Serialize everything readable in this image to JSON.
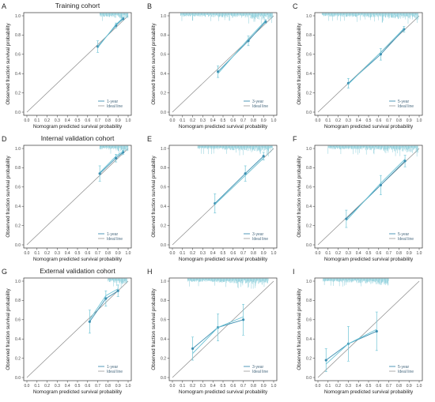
{
  "colors": {
    "series": "#3d8fb1",
    "series_light": "#6cc3d5",
    "rug": "#7ec8d6",
    "ideal": "#8a8a8a",
    "axis": "#333333"
  },
  "chart_data": [
    {
      "letter": "A",
      "title": "Training cohort",
      "type": "line",
      "xlabel": "Nomogram predicted survival probability",
      "ylabel": "Observed fraction survival probability",
      "xlim": [
        0,
        1
      ],
      "ylim": [
        0,
        1
      ],
      "xticks": [
        "0.0",
        "0.1",
        "0.2",
        "0.3",
        "0.4",
        "0.5",
        "0.6",
        "0.7",
        "0.8",
        "0.9",
        "1.0"
      ],
      "yticks": [
        "0.0",
        "0.2",
        "0.4",
        "0.6",
        "0.8",
        "1.0"
      ],
      "legend": [
        "1-year",
        "Ideal line"
      ],
      "rug": {
        "from": 0.72,
        "to": 1.0
      },
      "series": [
        {
          "x": [
            0.7,
            0.88,
            0.95
          ],
          "y": [
            0.68,
            0.9,
            0.97
          ],
          "err": [
            0.06,
            0.025,
            0.015
          ]
        },
        {
          "x": [
            0.7,
            0.88,
            0.95
          ],
          "y": [
            0.67,
            0.91,
            0.98
          ],
          "err": [
            0,
            0,
            0
          ]
        }
      ]
    },
    {
      "letter": "D",
      "title": "Internal validation cohort",
      "type": "line",
      "xlabel": "Nomogram predicted survival probability",
      "ylabel": "Observed fraction survival probability",
      "xlim": [
        0,
        1
      ],
      "ylim": [
        0,
        1
      ],
      "xticks": [
        "0.0",
        "0.1",
        "0.2",
        "0.3",
        "0.4",
        "0.5",
        "0.6",
        "0.7",
        "0.8",
        "0.9",
        "1.0"
      ],
      "yticks": [
        "0.0",
        "0.2",
        "0.4",
        "0.6",
        "0.8",
        "1.0"
      ],
      "legend": [
        "1-year",
        "Ideal line"
      ],
      "rug": {
        "from": 0.72,
        "to": 1.0
      },
      "series": [
        {
          "x": [
            0.72,
            0.88,
            0.95
          ],
          "y": [
            0.74,
            0.9,
            0.96
          ],
          "err": [
            0.08,
            0.04,
            0.02
          ]
        },
        {
          "x": [
            0.72,
            0.88,
            0.95
          ],
          "y": [
            0.75,
            0.92,
            0.97
          ],
          "err": [
            0,
            0,
            0
          ]
        }
      ]
    },
    {
      "letter": "G",
      "title": "External validation cohort",
      "type": "line",
      "xlabel": "Nomogram predicted survival probability",
      "ylabel": "Observed fraction survival probability",
      "xlim": [
        0,
        1
      ],
      "ylim": [
        0,
        1
      ],
      "xticks": [
        "0.0",
        "0.1",
        "0.2",
        "0.3",
        "0.4",
        "0.5",
        "0.6",
        "0.7",
        "0.8",
        "0.9",
        "1.0"
      ],
      "yticks": [
        "0.0",
        "0.2",
        "0.4",
        "0.6",
        "0.8",
        "1.0"
      ],
      "legend": [
        "1-year",
        "Ideal line"
      ],
      "rug": {
        "from": 0.8,
        "to": 0.99
      },
      "series": [
        {
          "x": [
            0.62,
            0.78,
            0.9
          ],
          "y": [
            0.58,
            0.82,
            0.9
          ],
          "err": [
            0.12,
            0.08,
            0.06
          ]
        },
        {
          "x": [
            0.62,
            0.78,
            0.9
          ],
          "y": [
            0.6,
            0.85,
            0.92
          ],
          "err": [
            0,
            0,
            0
          ]
        }
      ]
    },
    {
      "letter": "B",
      "title": "",
      "type": "line",
      "xlabel": "Nomogram predicted survival probability",
      "ylabel": "Observed fraction survival probability",
      "xlim": [
        0,
        1
      ],
      "ylim": [
        0,
        1
      ],
      "xticks": [
        "0.0",
        "0.1",
        "0.2",
        "0.3",
        "0.4",
        "0.5",
        "0.6",
        "0.7",
        "0.8",
        "0.9",
        "1.0"
      ],
      "yticks": [
        "0.0",
        "0.2",
        "0.4",
        "0.6",
        "0.8",
        "1.0"
      ],
      "legend": [
        "3-year",
        "Ideal line"
      ],
      "rug": {
        "from": 0.08,
        "to": 0.99
      },
      "series": [
        {
          "x": [
            0.45,
            0.75,
            0.92
          ],
          "y": [
            0.42,
            0.74,
            0.94
          ],
          "err": [
            0.06,
            0.05,
            0.02
          ]
        },
        {
          "x": [
            0.45,
            0.75,
            0.92
          ],
          "y": [
            0.4,
            0.76,
            0.95
          ],
          "err": [
            0,
            0,
            0
          ]
        }
      ]
    },
    {
      "letter": "E",
      "title": "",
      "type": "line",
      "xlabel": "Nomogram predicted survival probability",
      "ylabel": "Observed fraction survival probability",
      "xlim": [
        0,
        1
      ],
      "ylim": [
        0,
        1
      ],
      "xticks": [
        "0.0",
        "0.1",
        "0.2",
        "0.3",
        "0.4",
        "0.5",
        "0.6",
        "0.7",
        "0.8",
        "0.9",
        "1.0"
      ],
      "yticks": [
        "0.0",
        "0.2",
        "0.4",
        "0.6",
        "0.8",
        "1.0"
      ],
      "legend": [
        "3-year",
        "Ideal line"
      ],
      "rug": {
        "from": 0.25,
        "to": 0.99
      },
      "series": [
        {
          "x": [
            0.42,
            0.72,
            0.9
          ],
          "y": [
            0.43,
            0.74,
            0.92
          ],
          "err": [
            0.1,
            0.08,
            0.04
          ]
        },
        {
          "x": [
            0.42,
            0.72,
            0.9
          ],
          "y": [
            0.42,
            0.72,
            0.9
          ],
          "err": [
            0,
            0,
            0
          ]
        }
      ]
    },
    {
      "letter": "H",
      "title": "",
      "type": "line",
      "xlabel": "Nomogram predicted survival probability",
      "ylabel": "Observed fraction survival probability",
      "xlim": [
        0,
        1
      ],
      "ylim": [
        0,
        1
      ],
      "xticks": [
        "0.0",
        "0.1",
        "0.2",
        "0.3",
        "0.4",
        "0.5",
        "0.6",
        "0.7",
        "0.8",
        "0.9",
        "1.0"
      ],
      "yticks": [
        "0.0",
        "0.2",
        "0.4",
        "0.6",
        "0.8",
        "1.0"
      ],
      "legend": [
        "3-year",
        "Ideal line"
      ],
      "rug": {
        "from": 0.15,
        "to": 0.95
      },
      "series": [
        {
          "x": [
            0.2,
            0.45,
            0.7
          ],
          "y": [
            0.3,
            0.52,
            0.6
          ],
          "err": [
            0.12,
            0.14,
            0.16
          ]
        },
        {
          "x": [
            0.2,
            0.45,
            0.7
          ],
          "y": [
            0.25,
            0.52,
            0.63
          ],
          "err": [
            0,
            0,
            0
          ]
        }
      ]
    },
    {
      "letter": "C",
      "title": "",
      "type": "line",
      "xlabel": "Nomogram predicted survival probability",
      "ylabel": "Observed fraction survival probability",
      "xlim": [
        0,
        1
      ],
      "ylim": [
        0,
        1
      ],
      "xticks": [
        "0.0",
        "0.1",
        "0.2",
        "0.3",
        "0.4",
        "0.5",
        "0.6",
        "0.7",
        "0.8",
        "0.9",
        "1.0"
      ],
      "yticks": [
        "0.0",
        "0.2",
        "0.4",
        "0.6",
        "0.8",
        "1.0"
      ],
      "legend": [
        "5-year",
        "Ideal line"
      ],
      "rug": {
        "from": 0.04,
        "to": 0.99
      },
      "series": [
        {
          "x": [
            0.3,
            0.62,
            0.85
          ],
          "y": [
            0.3,
            0.6,
            0.86
          ],
          "err": [
            0.05,
            0.06,
            0.03
          ]
        },
        {
          "x": [
            0.3,
            0.62,
            0.85
          ],
          "y": [
            0.29,
            0.62,
            0.87
          ],
          "err": [
            0,
            0,
            0
          ]
        }
      ]
    },
    {
      "letter": "F",
      "title": "",
      "type": "line",
      "xlabel": "Nomogram predicted survival probability",
      "ylabel": "Observed fraction survival probability",
      "xlim": [
        0,
        1
      ],
      "ylim": [
        0,
        1
      ],
      "xticks": [
        "0.0",
        "0.1",
        "0.2",
        "0.3",
        "0.4",
        "0.5",
        "0.6",
        "0.7",
        "0.8",
        "0.9",
        "1.0"
      ],
      "yticks": [
        "0.0",
        "0.2",
        "0.4",
        "0.6",
        "0.8",
        "1.0"
      ],
      "legend": [
        "5-year",
        "Ideal line"
      ],
      "rug": {
        "from": 0.1,
        "to": 0.99
      },
      "series": [
        {
          "x": [
            0.28,
            0.62,
            0.86
          ],
          "y": [
            0.27,
            0.62,
            0.87
          ],
          "err": [
            0.09,
            0.1,
            0.06
          ]
        },
        {
          "x": [
            0.28,
            0.62,
            0.86
          ],
          "y": [
            0.25,
            0.64,
            0.89
          ],
          "err": [
            0,
            0,
            0
          ]
        }
      ]
    },
    {
      "letter": "I",
      "title": "",
      "type": "line",
      "xlabel": "Nomogram predicted survival probability",
      "ylabel": "Observed fraction survival probability",
      "xlim": [
        0,
        1
      ],
      "ylim": [
        0,
        1
      ],
      "xticks": [
        "0.0",
        "0.1",
        "0.2",
        "0.3",
        "0.4",
        "0.5",
        "0.6",
        "0.7",
        "0.8",
        "0.9",
        "1.0"
      ],
      "yticks": [
        "0.0",
        "0.2",
        "0.4",
        "0.6",
        "0.8",
        "1.0"
      ],
      "legend": [
        "5-year",
        "Ideal line"
      ],
      "rug": {
        "from": 0.05,
        "to": 0.7
      },
      "series": [
        {
          "x": [
            0.08,
            0.3,
            0.58
          ],
          "y": [
            0.18,
            0.35,
            0.48
          ],
          "err": [
            0.12,
            0.18,
            0.2
          ]
        },
        {
          "x": [
            0.08,
            0.3,
            0.58
          ],
          "y": [
            0.14,
            0.35,
            0.5
          ],
          "err": [
            0,
            0,
            0
          ]
        }
      ]
    }
  ]
}
